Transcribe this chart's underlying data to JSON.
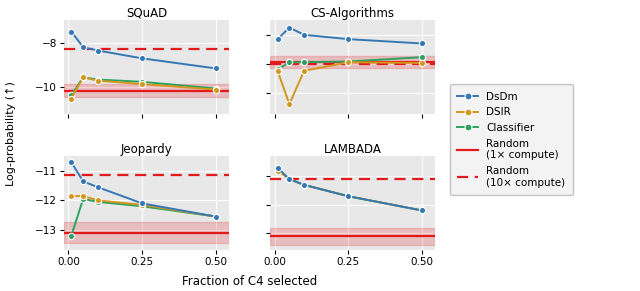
{
  "subplots": [
    {
      "title": "SQuAD",
      "x": [
        0.01,
        0.05,
        0.1,
        0.25,
        0.5
      ],
      "dsdm": [
        -7.5,
        -8.2,
        -8.35,
        -8.7,
        -9.15
      ],
      "dsir": [
        -10.5,
        -9.55,
        -9.7,
        -9.85,
        -10.1
      ],
      "classifier": [
        -10.35,
        -9.55,
        -9.65,
        -9.75,
        -10.05
      ],
      "random_1x": -10.15,
      "random_1x_std": 0.3,
      "random_10x": -8.3,
      "ylim": [
        -11.2,
        -7.0
      ],
      "yticks": [
        -8,
        -10
      ]
    },
    {
      "title": "CS-Algorithms",
      "x": [
        0.01,
        0.05,
        0.1,
        0.25,
        0.5
      ],
      "dsdm": [
        -4.3,
        -3.5,
        -4.0,
        -4.3,
        -4.6
      ],
      "dsir": [
        -6.5,
        -8.8,
        -6.5,
        -5.9,
        -5.95
      ],
      "classifier": [
        -6.4,
        -5.9,
        -5.9,
        -5.85,
        -5.55
      ],
      "random_1x": -5.9,
      "random_1x_std": 0.4,
      "random_10x": -6.05,
      "ylim": [
        -9.5,
        -3.0
      ],
      "yticks": [
        -4,
        -6,
        -8
      ]
    },
    {
      "title": "Jeopardy",
      "x": [
        0.01,
        0.05,
        0.1,
        0.25,
        0.5
      ],
      "dsdm": [
        -10.7,
        -11.35,
        -11.55,
        -12.1,
        -12.55
      ],
      "dsir": [
        -11.85,
        -11.85,
        -12.0,
        -12.15,
        -12.55
      ],
      "classifier": [
        -13.2,
        -11.95,
        -12.05,
        -12.2,
        -12.55
      ],
      "random_1x": -13.1,
      "random_1x_std": 0.35,
      "random_10x": -11.15,
      "ylim": [
        -13.7,
        -10.5
      ],
      "yticks": [
        -11,
        -12,
        -13
      ]
    },
    {
      "title": "LAMBADA",
      "x": [
        0.01,
        0.05,
        0.1,
        0.25,
        0.5
      ],
      "dsdm": [
        -2.85,
        -3.05,
        -3.15,
        -3.35,
        -3.6
      ],
      "dsir": [
        -2.9,
        -3.05,
        -3.15,
        -3.35,
        -3.6
      ],
      "classifier": [
        -2.88,
        -3.05,
        -3.15,
        -3.35,
        -3.6
      ],
      "random_1x": -4.05,
      "random_1x_std": 0.15,
      "random_10x": -3.05,
      "ylim": [
        -4.3,
        -2.65
      ],
      "yticks": [
        -3.0,
        -3.5,
        -4.0
      ]
    }
  ],
  "color_dsdm": "#3578b5",
  "color_dsir": "#d4961c",
  "color_classifier": "#2ca25f",
  "color_random": "#e31a1c",
  "bg_color": "#e8e8e8",
  "xlabel": "Fraction of C4 selected",
  "ylabel": "Log-probability (↑)"
}
